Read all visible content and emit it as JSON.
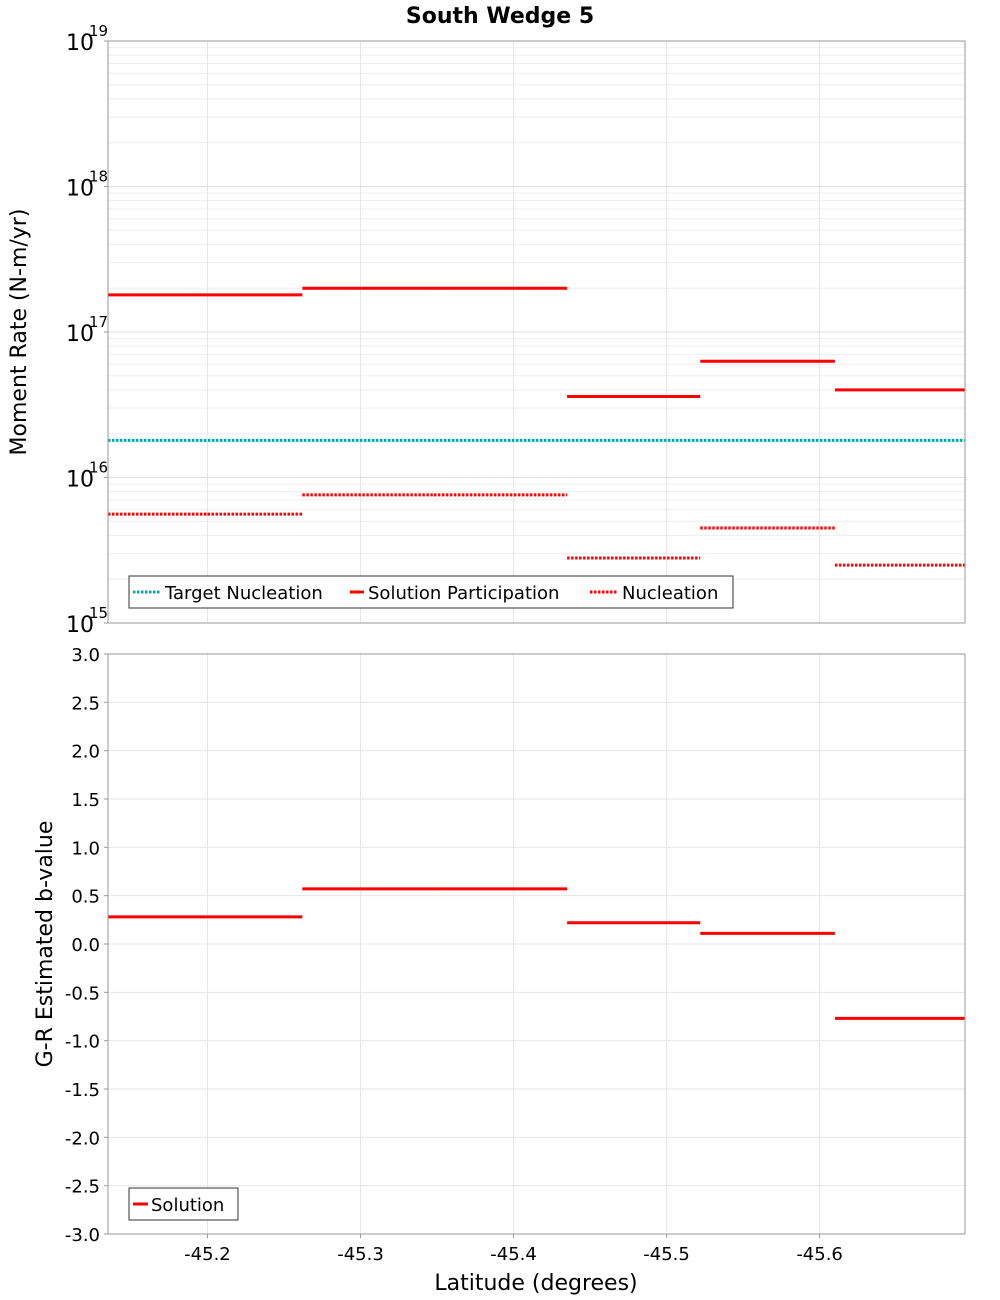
{
  "chart_data": [
    {
      "type": "line",
      "title": "South Wedge 5",
      "xlabel": "",
      "ylabel": "Moment Rate (N-m/yr)",
      "yscale": "log",
      "ylim": [
        1000000000000000.0,
        1e+19
      ],
      "xlim": [
        -45.135,
        -45.695
      ],
      "x_reversed": true,
      "ytick_labels": [
        {
          "base": "10",
          "exp": "15"
        },
        {
          "base": "10",
          "exp": "16"
        },
        {
          "base": "10",
          "exp": "17"
        },
        {
          "base": "10",
          "exp": "18"
        },
        {
          "base": "10",
          "exp": "19"
        }
      ],
      "grid": true,
      "legend_position": "bottom-left",
      "legend": [
        "Target Nucleation",
        "Solution Participation",
        "Nucleation"
      ],
      "series": [
        {
          "name": "Target Nucleation",
          "style": "dotted",
          "color": "#00aaaa",
          "segments": [
            {
              "x": [
                -45.135,
                -45.695
              ],
              "y": 1.8e+16
            }
          ]
        },
        {
          "name": "Solution Participation",
          "style": "solid",
          "color": "#ff0000",
          "segments": [
            {
              "x": [
                -45.135,
                -45.2
              ],
              "y": 1.8e+17
            },
            {
              "x": [
                -45.2,
                -45.262
              ],
              "y": 1.8e+17
            },
            {
              "x": [
                -45.262,
                -45.348
              ],
              "y": 2e+17
            },
            {
              "x": [
                -45.348,
                -45.435
              ],
              "y": 2e+17
            },
            {
              "x": [
                -45.435,
                -45.522
              ],
              "y": 3.6e+16
            },
            {
              "x": [
                -45.522,
                -45.61
              ],
              "y": 6.3e+16
            },
            {
              "x": [
                -45.61,
                -45.695
              ],
              "y": 4e+16
            }
          ]
        },
        {
          "name": "Nucleation",
          "style": "dotted",
          "color": "#ff0000",
          "segments": [
            {
              "x": [
                -45.135,
                -45.2
              ],
              "y": 5600000000000000.0
            },
            {
              "x": [
                -45.2,
                -45.262
              ],
              "y": 5600000000000000.0
            },
            {
              "x": [
                -45.262,
                -45.348
              ],
              "y": 7600000000000000.0
            },
            {
              "x": [
                -45.348,
                -45.435
              ],
              "y": 7600000000000000.0
            },
            {
              "x": [
                -45.435,
                -45.522
              ],
              "y": 2800000000000000.0
            },
            {
              "x": [
                -45.522,
                -45.61
              ],
              "y": 4500000000000000.0
            },
            {
              "x": [
                -45.61,
                -45.695
              ],
              "y": 2500000000000000.0
            }
          ]
        }
      ]
    },
    {
      "type": "line",
      "title": "",
      "xlabel": "Latitude (degrees)",
      "ylabel": "G-R Estimated b-value",
      "ylim": [
        -3.0,
        3.0
      ],
      "yticks": [
        "-3.0",
        "-2.5",
        "-2.0",
        "-1.5",
        "-1.0",
        "-0.5",
        "0.0",
        "0.5",
        "1.0",
        "1.5",
        "2.0",
        "2.5",
        "3.0"
      ],
      "xlim": [
        -45.135,
        -45.695
      ],
      "x_reversed": true,
      "xticks": [
        "-45.2",
        "-45.3",
        "-45.4",
        "-45.5",
        "-45.6"
      ],
      "grid": true,
      "legend_position": "bottom-left",
      "legend": [
        "Solution"
      ],
      "series": [
        {
          "name": "Solution",
          "style": "solid",
          "color": "#ff0000",
          "segments": [
            {
              "x": [
                -45.135,
                -45.2
              ],
              "y": 0.28
            },
            {
              "x": [
                -45.2,
                -45.262
              ],
              "y": 0.28
            },
            {
              "x": [
                -45.262,
                -45.348
              ],
              "y": 0.57
            },
            {
              "x": [
                -45.348,
                -45.435
              ],
              "y": 0.57
            },
            {
              "x": [
                -45.435,
                -45.522
              ],
              "y": 0.22
            },
            {
              "x": [
                -45.522,
                -45.61
              ],
              "y": 0.11
            },
            {
              "x": [
                -45.61,
                -45.695
              ],
              "y": -0.77
            }
          ]
        }
      ]
    }
  ]
}
